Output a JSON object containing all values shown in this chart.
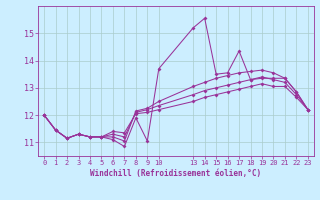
{
  "background_color": "#cceeff",
  "grid_color": "#aacccc",
  "line_color": "#993399",
  "xlabel": "Windchill (Refroidissement éolien,°C)",
  "xlim": [
    -0.5,
    23.5
  ],
  "ylim": [
    10.5,
    16.0
  ],
  "yticks": [
    11,
    12,
    13,
    14,
    15
  ],
  "xticks": [
    0,
    1,
    2,
    3,
    4,
    5,
    6,
    7,
    8,
    9,
    10,
    13,
    14,
    15,
    16,
    17,
    18,
    19,
    20,
    21,
    22,
    23
  ],
  "s1_x": [
    0,
    1,
    2,
    3,
    4,
    5,
    6,
    7,
    8,
    9,
    10,
    13,
    14,
    15,
    16,
    17,
    18,
    19,
    20,
    21,
    22,
    23
  ],
  "s1_y": [
    12.0,
    11.45,
    11.15,
    11.3,
    11.2,
    11.2,
    11.1,
    10.85,
    11.9,
    11.05,
    13.7,
    15.2,
    15.55,
    13.5,
    13.55,
    14.35,
    13.3,
    13.35,
    13.35,
    13.35,
    12.85,
    12.2
  ],
  "s2_x": [
    0,
    1,
    2,
    3,
    4,
    5,
    6,
    7,
    8,
    9,
    10,
    13,
    14,
    15,
    16,
    17,
    18,
    19,
    20,
    21,
    22,
    23
  ],
  "s2_y": [
    12.0,
    11.45,
    11.15,
    11.3,
    11.2,
    11.2,
    11.2,
    11.05,
    12.15,
    12.25,
    12.5,
    13.05,
    13.2,
    13.35,
    13.45,
    13.55,
    13.6,
    13.65,
    13.55,
    13.35,
    12.85,
    12.2
  ],
  "s3_x": [
    0,
    1,
    2,
    3,
    4,
    5,
    6,
    7,
    8,
    9,
    10,
    13,
    14,
    15,
    16,
    17,
    18,
    19,
    20,
    21,
    22,
    23
  ],
  "s3_y": [
    12.0,
    11.45,
    11.15,
    11.3,
    11.2,
    11.2,
    11.3,
    11.2,
    12.1,
    12.2,
    12.35,
    12.75,
    12.9,
    13.0,
    13.1,
    13.2,
    13.3,
    13.4,
    13.3,
    13.2,
    12.75,
    12.2
  ],
  "s4_x": [
    0,
    1,
    2,
    3,
    4,
    5,
    6,
    7,
    8,
    9,
    10,
    13,
    14,
    15,
    16,
    17,
    18,
    19,
    20,
    21,
    22,
    23
  ],
  "s4_y": [
    12.0,
    11.45,
    11.15,
    11.3,
    11.2,
    11.2,
    11.4,
    11.35,
    12.05,
    12.1,
    12.2,
    12.5,
    12.65,
    12.75,
    12.85,
    12.95,
    13.05,
    13.15,
    13.05,
    13.05,
    12.65,
    12.2
  ]
}
